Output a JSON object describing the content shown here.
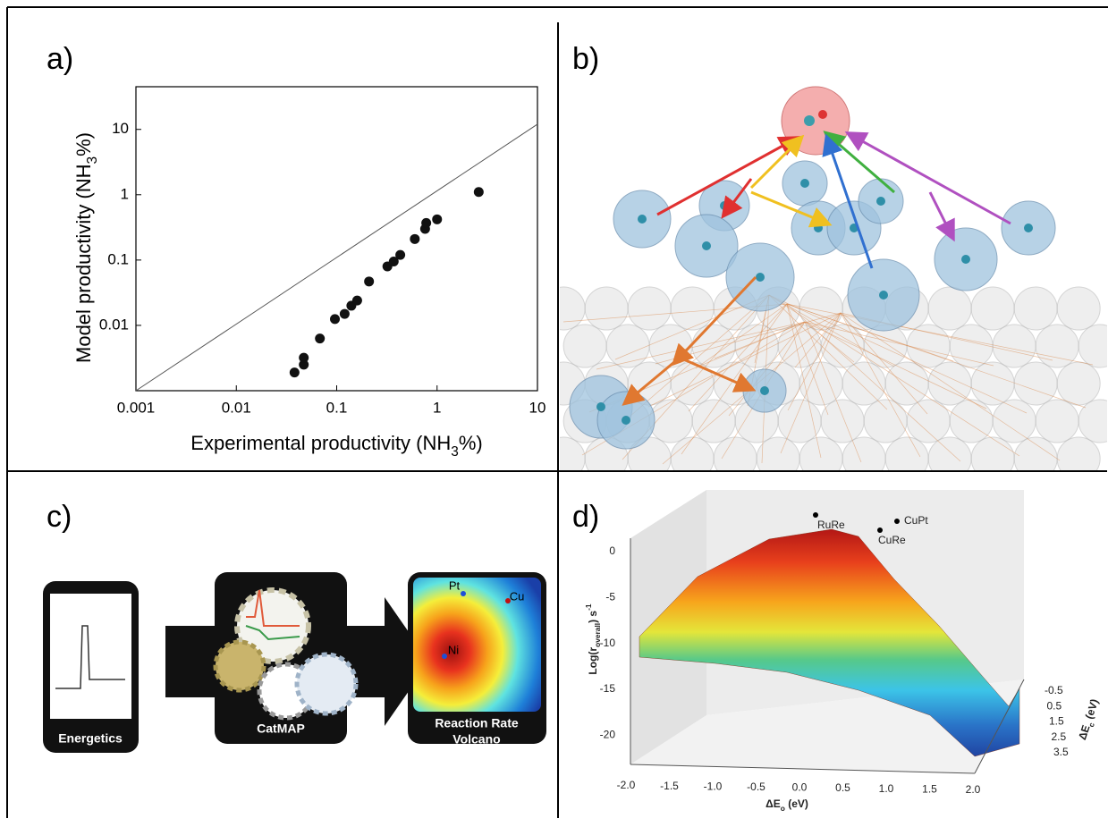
{
  "panels": {
    "a": {
      "label": "a)"
    },
    "b": {
      "label": "b)"
    },
    "c": {
      "label": "c)",
      "steps": [
        "Energetics",
        "CatMAP"
      ],
      "volcano_title": [
        "Reaction Rate",
        "Volcano"
      ],
      "metals": [
        "Pt",
        "Cu",
        "Ni"
      ]
    },
    "d": {
      "label": "d)",
      "points": [
        "RuRe",
        "CuPt",
        "CuRe"
      ],
      "z_label": [
        "Log(r",
        "overall",
        ") s",
        "-1"
      ],
      "z_ticks": [
        "0",
        "-5",
        "-10",
        "-15",
        "-20"
      ],
      "x_label": [
        "ΔE",
        "o",
        " (eV)"
      ],
      "x_ticks": [
        "-2.0",
        "-1.5",
        "-1.0",
        "-0.5",
        "0.0",
        "0.5",
        "1.0",
        "1.5",
        "2.0"
      ],
      "depth_label": [
        "ΔE",
        "c",
        " (eV)"
      ],
      "depth_ticks": [
        "-0.5",
        "0.5",
        "1.5",
        "2.5",
        "3.5"
      ]
    }
  },
  "chart_data": {
    "type": "scatter",
    "x_label": [
      "Experimental productivity (NH",
      "3",
      "%)"
    ],
    "y_label": [
      "Model productivity (NH",
      "3",
      "%)"
    ],
    "x": [
      0.038,
      0.047,
      0.047,
      0.068,
      0.096,
      0.12,
      0.14,
      0.16,
      0.21,
      0.32,
      0.37,
      0.43,
      0.6,
      0.76,
      0.78,
      1.0,
      2.6
    ],
    "y": [
      0.0019,
      0.0025,
      0.0032,
      0.0063,
      0.0125,
      0.015,
      0.02,
      0.024,
      0.047,
      0.08,
      0.095,
      0.12,
      0.21,
      0.3,
      0.37,
      0.42,
      1.1
    ],
    "color": "#111111",
    "xlim": [
      0.001,
      10
    ],
    "ylim": [
      0.001,
      45
    ],
    "xticks": [
      0.001,
      0.01,
      0.1,
      1,
      10
    ],
    "yticks": [
      0.01,
      0.1,
      1,
      10
    ],
    "log_x": true,
    "log_y": true,
    "reference_line": {
      "x": [
        0.001,
        10
      ],
      "y": [
        0.001,
        12
      ],
      "color": "#555555"
    }
  }
}
